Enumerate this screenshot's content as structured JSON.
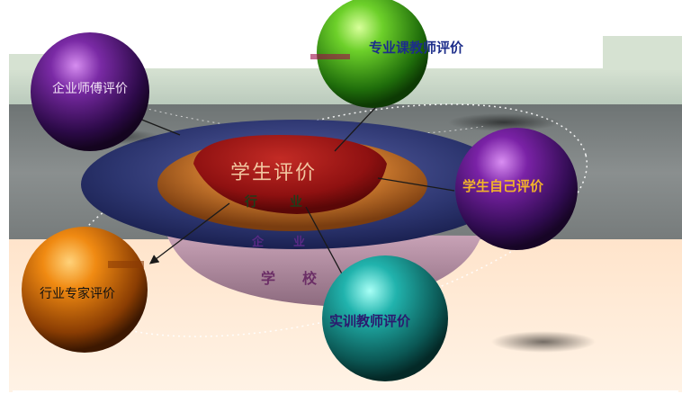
{
  "center": {
    "title": "学生评价",
    "layers": [
      "行",
      "业",
      "企",
      "业",
      "学",
      "校"
    ]
  },
  "spheres": [
    {
      "name": "teacher-professional",
      "label": "专业课教师评价",
      "color": "#2f8f13"
    },
    {
      "name": "mentor-enterprise",
      "label": "企业师傅评价",
      "color": "#4a1a6b"
    },
    {
      "name": "student-self",
      "label": "学生自己评价",
      "color": "#5b1778"
    },
    {
      "name": "expert-industry",
      "label": "行业专家评价",
      "color": "#c06a05"
    },
    {
      "name": "teacher-training",
      "label": "实训教师评价",
      "color": "#158a87"
    }
  ],
  "colors": {
    "top_band": "#c8d7c7",
    "middle_band": "#7b8080",
    "bottom_band": "#fde2c9",
    "bowl_outer": "#303a78",
    "bowl_mid": "#c0712a",
    "bowl_inner": "#8f1111",
    "bowl_base": "#b58ca1"
  }
}
